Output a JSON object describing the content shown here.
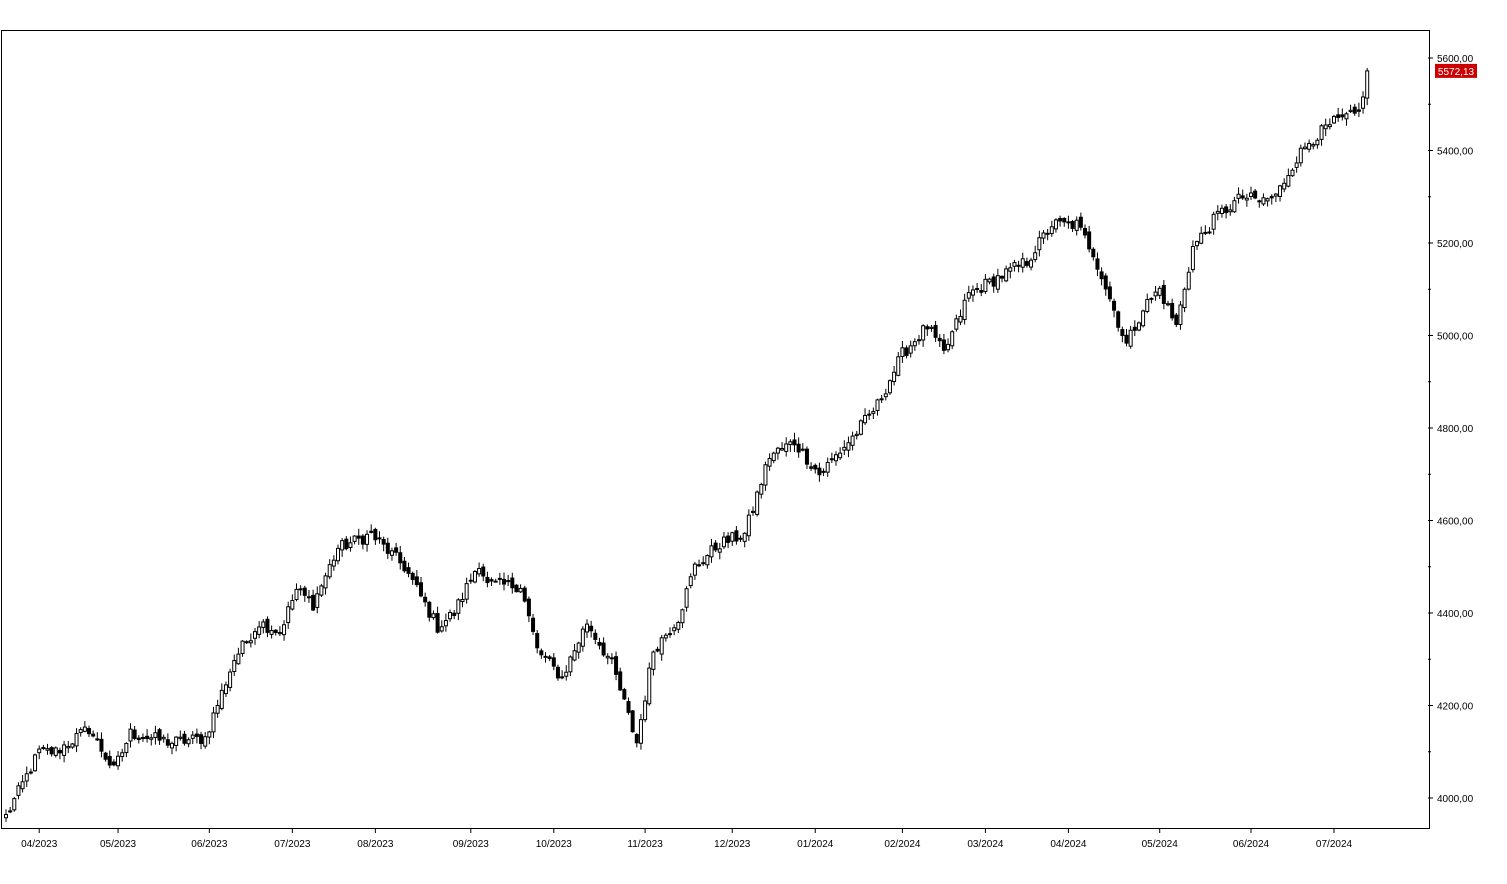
{
  "chart_data": {
    "type": "candlestick",
    "title": "",
    "xlabel": "",
    "ylabel": "",
    "ylim": [
      3880,
      5640
    ],
    "y_ticks": [
      {
        "value": 4000,
        "label": "4000,00"
      },
      {
        "value": 4200,
        "label": "4200,00"
      },
      {
        "value": 4400,
        "label": "4400,00"
      },
      {
        "value": 4600,
        "label": "4600,00"
      },
      {
        "value": 4800,
        "label": "4800,00"
      },
      {
        "value": 5000,
        "label": "5000,00"
      },
      {
        "value": 5200,
        "label": "5200,00"
      },
      {
        "value": 5400,
        "label": "5400,00"
      },
      {
        "value": 5600,
        "label": "5600,00"
      }
    ],
    "x_ticks": [
      {
        "index": 8,
        "label": "04/2023"
      },
      {
        "index": 27,
        "label": "05/2023"
      },
      {
        "index": 49,
        "label": "06/2023"
      },
      {
        "index": 69,
        "label": "07/2023"
      },
      {
        "index": 89,
        "label": "08/2023"
      },
      {
        "index": 112,
        "label": "09/2023"
      },
      {
        "index": 132,
        "label": "10/2023"
      },
      {
        "index": 154,
        "label": "11/2023"
      },
      {
        "index": 175,
        "label": "12/2023"
      },
      {
        "index": 195,
        "label": "01/2024"
      },
      {
        "index": 216,
        "label": "02/2024"
      },
      {
        "index": 236,
        "label": "03/2024"
      },
      {
        "index": 256,
        "label": "04/2024"
      },
      {
        "index": 278,
        "label": "05/2024"
      },
      {
        "index": 300,
        "label": "06/2024"
      },
      {
        "index": 320,
        "label": "07/2024"
      }
    ],
    "anchors": [
      [
        0,
        3960
      ],
      [
        8,
        4100
      ],
      [
        12,
        4100
      ],
      [
        20,
        4150
      ],
      [
        26,
        4060
      ],
      [
        30,
        4140
      ],
      [
        40,
        4120
      ],
      [
        48,
        4130
      ],
      [
        55,
        4300
      ],
      [
        61,
        4380
      ],
      [
        66,
        4360
      ],
      [
        70,
        4450
      ],
      [
        74,
        4420
      ],
      [
        80,
        4540
      ],
      [
        88,
        4570
      ],
      [
        96,
        4500
      ],
      [
        104,
        4370
      ],
      [
        108,
        4400
      ],
      [
        114,
        4510
      ],
      [
        116,
        4460
      ],
      [
        124,
        4460
      ],
      [
        128,
        4320
      ],
      [
        134,
        4260
      ],
      [
        140,
        4380
      ],
      [
        146,
        4290
      ],
      [
        152,
        4120
      ],
      [
        156,
        4320
      ],
      [
        162,
        4390
      ],
      [
        166,
        4500
      ],
      [
        172,
        4550
      ],
      [
        178,
        4570
      ],
      [
        184,
        4740
      ],
      [
        190,
        4770
      ],
      [
        196,
        4700
      ],
      [
        204,
        4780
      ],
      [
        210,
        4850
      ],
      [
        216,
        4960
      ],
      [
        222,
        5020
      ],
      [
        226,
        4960
      ],
      [
        232,
        5090
      ],
      [
        240,
        5130
      ],
      [
        246,
        5160
      ],
      [
        252,
        5240
      ],
      [
        258,
        5240
      ],
      [
        262,
        5180
      ],
      [
        266,
        5080
      ],
      [
        270,
        4980
      ],
      [
        274,
        5060
      ],
      [
        278,
        5100
      ],
      [
        282,
        5020
      ],
      [
        286,
        5190
      ],
      [
        292,
        5260
      ],
      [
        298,
        5300
      ],
      [
        302,
        5290
      ],
      [
        306,
        5300
      ],
      [
        310,
        5370
      ],
      [
        314,
        5420
      ],
      [
        320,
        5460
      ],
      [
        326,
        5480
      ],
      [
        328,
        5572
      ]
    ],
    "last_price": 5572.13,
    "last_price_label": "5572,13",
    "up_color": "#ffffff",
    "down_color": "#000000",
    "last_price_color": "#cc0000",
    "grid": false,
    "legend": "none"
  }
}
